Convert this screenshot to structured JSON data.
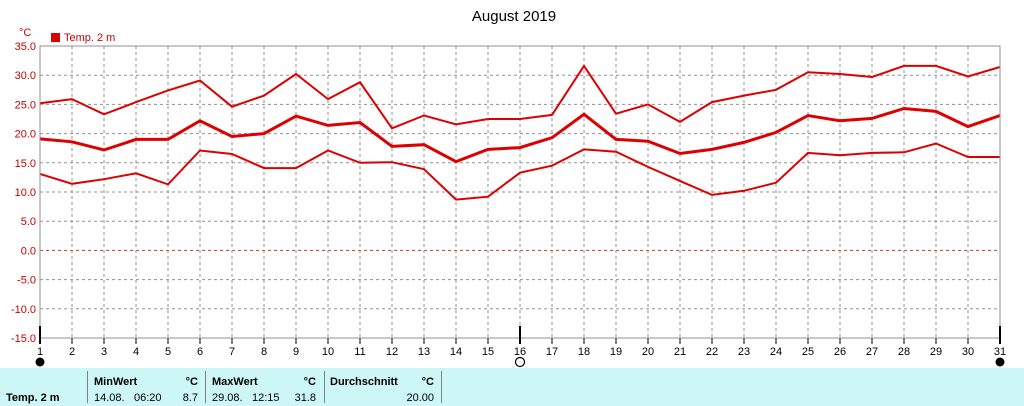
{
  "chart_data": {
    "type": "line",
    "title": "August 2019",
    "unit_label": "°C",
    "legend": {
      "label": "Temp. 2 m",
      "color": "#dd0000",
      "placement": "top-left"
    },
    "x": [
      1,
      2,
      3,
      4,
      5,
      6,
      7,
      8,
      9,
      10,
      11,
      12,
      13,
      14,
      15,
      16,
      17,
      18,
      19,
      20,
      21,
      22,
      23,
      24,
      25,
      26,
      27,
      28,
      29,
      30,
      31
    ],
    "x_tick_labels": [
      "1",
      "2",
      "3",
      "4",
      "5",
      "6",
      "7",
      "8",
      "9",
      "10",
      "11",
      "12",
      "13",
      "14",
      "15",
      "16",
      "17",
      "18",
      "19",
      "20",
      "21",
      "22",
      "23",
      "24",
      "25",
      "26",
      "27",
      "28",
      "29",
      "30",
      "31"
    ],
    "xlim": [
      1,
      31
    ],
    "ylim": [
      -15,
      35
    ],
    "y_ticks": [
      "-15.0",
      "-10.0",
      "-5.0",
      "0.0",
      "5.0",
      "10.0",
      "15.0",
      "20.0",
      "25.0",
      "30.0",
      "35.0"
    ],
    "grid": true,
    "line_color": "#dd0000",
    "series": [
      {
        "role": "max",
        "values": [
          25.2,
          25.9,
          23.3,
          25.4,
          27.4,
          29.1,
          24.6,
          26.5,
          30.2,
          25.9,
          28.8,
          20.9,
          23.1,
          21.6,
          22.5,
          22.5,
          23.2,
          31.6,
          23.4,
          25.0,
          22.0,
          25.4,
          26.5,
          27.5,
          30.5,
          30.2,
          29.7,
          31.6,
          31.6,
          29.8,
          31.4
        ]
      },
      {
        "role": "avg",
        "values": [
          19.1,
          18.6,
          17.2,
          19.0,
          19.0,
          22.2,
          19.5,
          20.0,
          23.0,
          21.4,
          21.9,
          17.8,
          18.1,
          15.2,
          17.3,
          17.6,
          19.3,
          23.3,
          19.0,
          18.7,
          16.6,
          17.3,
          18.5,
          20.2,
          23.1,
          22.2,
          22.6,
          24.3,
          23.8,
          21.2,
          23.1
        ]
      },
      {
        "role": "min",
        "values": [
          13.1,
          11.4,
          12.2,
          13.2,
          11.3,
          17.1,
          16.5,
          14.1,
          14.1,
          17.1,
          15.0,
          15.1,
          13.9,
          8.7,
          9.2,
          13.3,
          14.5,
          17.3,
          16.9,
          14.3,
          11.9,
          9.5,
          10.2,
          11.6,
          16.7,
          16.3,
          16.7,
          16.8,
          18.3,
          16.0,
          16.0
        ]
      }
    ],
    "markers": [
      {
        "type": "full-moon",
        "x": 1
      },
      {
        "type": "first-quarter",
        "x": 16
      },
      {
        "type": "full-moon",
        "x": 31
      }
    ]
  },
  "stats": {
    "row_label": "Temp. 2 m",
    "min": {
      "header": "MinWert",
      "unit": "°C",
      "date": "14.08.",
      "time": "06:20",
      "value": "8.7"
    },
    "max": {
      "header": "MaxWert",
      "unit": "°C",
      "date": "29.08.",
      "time": "12:15",
      "value": "31.8"
    },
    "avg": {
      "header": "Durchschnitt",
      "unit": "°C",
      "value": "20.00"
    }
  }
}
